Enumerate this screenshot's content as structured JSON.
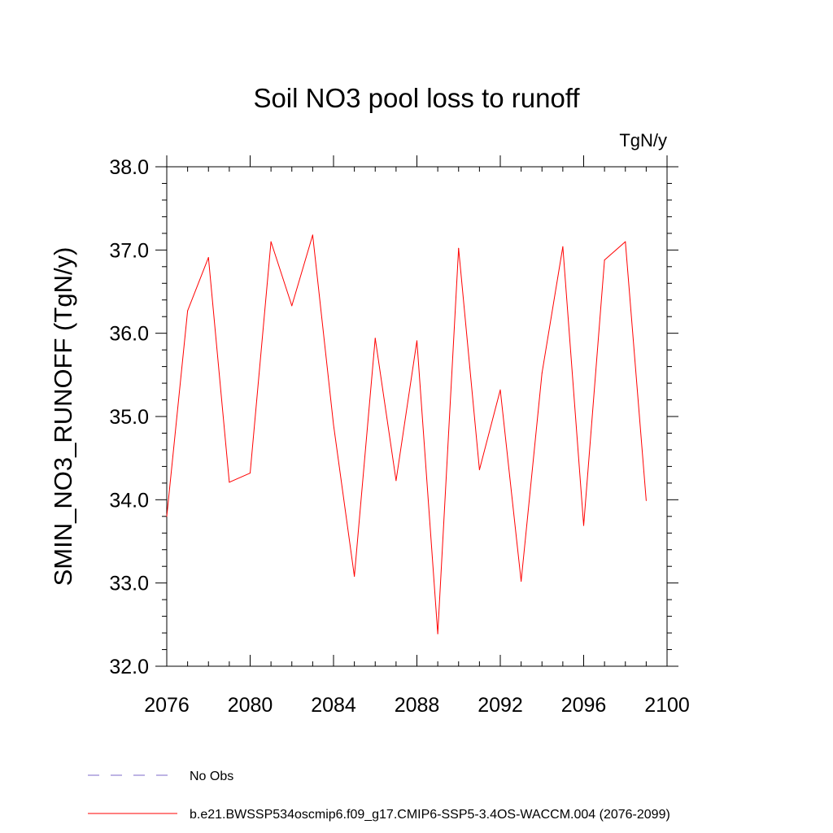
{
  "chart_data": {
    "type": "line",
    "title": "Soil NO3 pool loss to runoff",
    "units": "TgN/y",
    "xlabel": "",
    "ylabel": "SMIN_NO3_RUNOFF  (TgN/y)",
    "xlim": [
      2076,
      2100
    ],
    "ylim": [
      32.0,
      38.0
    ],
    "x_ticks": [
      2076,
      2080,
      2084,
      2088,
      2092,
      2096,
      2100
    ],
    "x_tick_labels": [
      "2076",
      "2080",
      "2084",
      "2088",
      "2092",
      "2096",
      "2100"
    ],
    "y_ticks": [
      32.0,
      33.0,
      34.0,
      35.0,
      36.0,
      37.0,
      38.0
    ],
    "y_tick_labels": [
      "32.0",
      "33.0",
      "34.0",
      "35.0",
      "36.0",
      "37.0",
      "38.0"
    ],
    "grid": false,
    "series": [
      {
        "name": "b.e21.BWSSP534oscmip6.f09_g17.CMIP6-SSP5-3.4OS-WACCM.004 (2076-2099)",
        "color": "#ff0000",
        "style": "solid",
        "x": [
          2076,
          2077,
          2078,
          2079,
          2080,
          2081,
          2082,
          2083,
          2084,
          2085,
          2086,
          2087,
          2088,
          2089,
          2090,
          2091,
          2092,
          2093,
          2094,
          2095,
          2096,
          2097,
          2098,
          2099
        ],
        "values": [
          33.8,
          36.27,
          36.91,
          34.21,
          34.32,
          37.1,
          36.33,
          37.18,
          34.9,
          33.08,
          35.94,
          34.23,
          35.91,
          32.39,
          37.02,
          34.36,
          35.32,
          33.02,
          35.52,
          37.04,
          33.69,
          36.88,
          37.1,
          33.99
        ]
      }
    ],
    "legend": {
      "placement": "bottom-left",
      "entries": [
        {
          "label": "No Obs",
          "color": "#7b68c8",
          "style": "dashed"
        },
        {
          "label": "b.e21.BWSSP534oscmip6.f09_g17.CMIP6-SSP5-3.4OS-WACCM.004 (2076-2099)",
          "color": "#ff0000",
          "style": "solid"
        }
      ]
    }
  }
}
